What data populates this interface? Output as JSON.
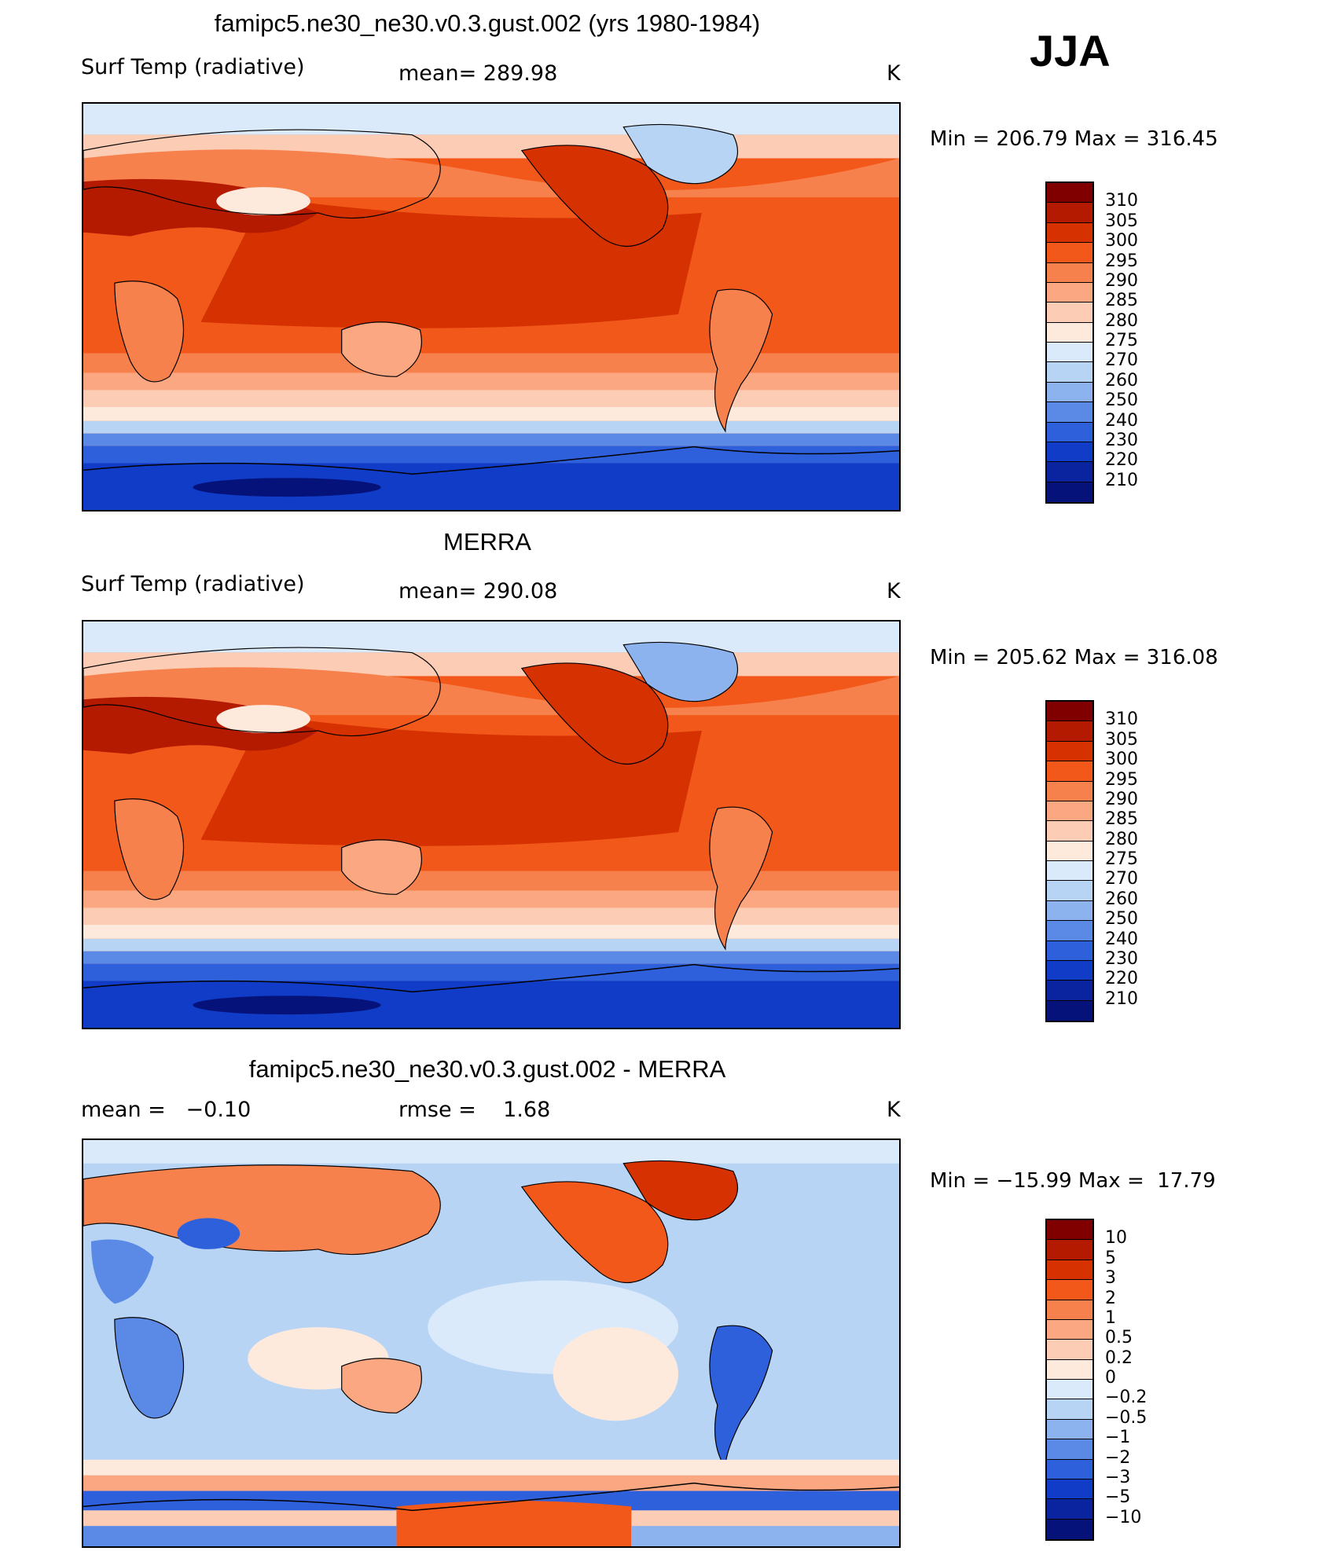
{
  "season": "JJA",
  "panels": [
    {
      "title": "famipc5.ne30_ne30.v0.3.gust.002 (yrs 1980-1984)",
      "left_label": "Surf Temp (radiative)",
      "center_label": "mean= 289.98",
      "units": "K",
      "min_max": "Min = 206.79 Max = 316.45",
      "colorbar": {
        "ticks": [
          "310",
          "305",
          "300",
          "295",
          "290",
          "285",
          "280",
          "275",
          "270",
          "260",
          "250",
          "240",
          "230",
          "220",
          "210"
        ],
        "colors": [
          "#800000",
          "#b31a00",
          "#d63100",
          "#f2581a",
          "#f7814d",
          "#fba882",
          "#fdccb4",
          "#fdeadc",
          "#dbeafa",
          "#b8d4f5",
          "#8cb3ee",
          "#5a8ae6",
          "#2e60dc",
          "#103cc8",
          "#0a24a0",
          "#04127a"
        ]
      }
    },
    {
      "title": "MERRA",
      "left_label": "Surf Temp (radiative)",
      "center_label": "mean= 290.08",
      "units": "K",
      "min_max": "Min = 205.62 Max = 316.08",
      "colorbar": {
        "ticks": [
          "310",
          "305",
          "300",
          "295",
          "290",
          "285",
          "280",
          "275",
          "270",
          "260",
          "250",
          "240",
          "230",
          "220",
          "210"
        ],
        "colors": [
          "#800000",
          "#b31a00",
          "#d63100",
          "#f2581a",
          "#f7814d",
          "#fba882",
          "#fdccb4",
          "#fdeadc",
          "#dbeafa",
          "#b8d4f5",
          "#8cb3ee",
          "#5a8ae6",
          "#2e60dc",
          "#103cc8",
          "#0a24a0",
          "#04127a"
        ]
      }
    },
    {
      "title": "famipc5.ne30_ne30.v0.3.gust.002 - MERRA",
      "left_label": "mean =   −0.10",
      "center_label": "rmse =    1.68",
      "units": "K",
      "min_max": "Min = −15.99 Max =  17.79",
      "colorbar": {
        "ticks": [
          "10",
          "5",
          "3",
          "2",
          "1",
          "0.5",
          "0.2",
          "0",
          "−0.2",
          "−0.5",
          "−1",
          "−2",
          "−3",
          "−5",
          "−10"
        ],
        "colors": [
          "#800000",
          "#b31a00",
          "#d63100",
          "#f2581a",
          "#f7814d",
          "#fba882",
          "#fdccb4",
          "#fdeadc",
          "#dbeafa",
          "#b8d4f5",
          "#8cb3ee",
          "#5a8ae6",
          "#2e60dc",
          "#103cc8",
          "#0a24a0",
          "#04127a"
        ]
      }
    }
  ]
}
